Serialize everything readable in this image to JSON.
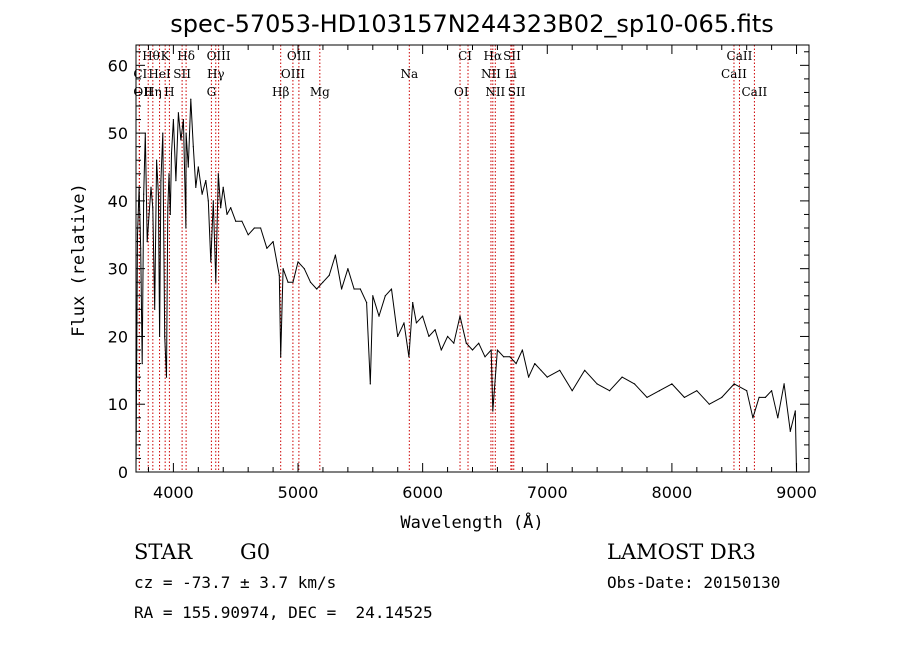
{
  "chart_data": {
    "type": "line",
    "title": "spec-57053-HD103157N244323B02_sp10-065.fits",
    "xlabel": "Wavelength (Å)",
    "ylabel": "Flux (relative)",
    "xlim": [
      3700,
      9100
    ],
    "ylim": [
      0,
      63
    ],
    "xticks": [
      4000,
      5000,
      6000,
      7000,
      8000,
      9000
    ],
    "yticks": [
      0,
      10,
      20,
      30,
      40,
      50,
      60
    ],
    "grid": false,
    "series": [
      {
        "name": "flux",
        "x": [
          3700,
          3712,
          3725,
          3738,
          3750,
          3762,
          3775,
          3790,
          3805,
          3820,
          3835,
          3850,
          3865,
          3880,
          3889,
          3900,
          3915,
          3930,
          3945,
          3955,
          3965,
          3975,
          3985,
          4000,
          4020,
          4040,
          4060,
          4080,
          4100,
          4102,
          4120,
          4140,
          4160,
          4180,
          4200,
          4230,
          4260,
          4280,
          4300,
          4320,
          4340,
          4360,
          4380,
          4400,
          4430,
          4460,
          4500,
          4550,
          4600,
          4650,
          4700,
          4750,
          4800,
          4850,
          4861,
          4880,
          4920,
          4960,
          5000,
          5050,
          5100,
          5150,
          5200,
          5250,
          5300,
          5350,
          5400,
          5450,
          5500,
          5550,
          5580,
          5600,
          5650,
          5700,
          5750,
          5800,
          5850,
          5890,
          5920,
          5950,
          6000,
          6050,
          6100,
          6150,
          6200,
          6250,
          6300,
          6350,
          6400,
          6450,
          6500,
          6550,
          6563,
          6600,
          6650,
          6700,
          6750,
          6800,
          6850,
          6900,
          6950,
          7000,
          7100,
          7200,
          7300,
          7400,
          7500,
          7600,
          7700,
          7800,
          7900,
          8000,
          8100,
          8200,
          8300,
          8400,
          8500,
          8600,
          8650,
          8700,
          8750,
          8800,
          8850,
          8900,
          8950,
          8990,
          9000
        ],
        "y": [
          0,
          35,
          42,
          33,
          16,
          41,
          50,
          34,
          38,
          42,
          39,
          24,
          46,
          41,
          20,
          43,
          50,
          20,
          14,
          39,
          44,
          38,
          47,
          52,
          43,
          53,
          49,
          52,
          36,
          50,
          45,
          55,
          48,
          42,
          45,
          41,
          43,
          40,
          31,
          40,
          28,
          44,
          39,
          42,
          38,
          39,
          37,
          37,
          35,
          36,
          36,
          33,
          34,
          29,
          17,
          30,
          28,
          28,
          31,
          30,
          28,
          27,
          28,
          29,
          32,
          27,
          30,
          27,
          27,
          25,
          13,
          26,
          23,
          26,
          27,
          20,
          22,
          17,
          25,
          22,
          23,
          20,
          21,
          18,
          20,
          19,
          23,
          19,
          18,
          19,
          17,
          18,
          9,
          18,
          17,
          17,
          16,
          18,
          14,
          16,
          15,
          14,
          15,
          12,
          15,
          13,
          12,
          14,
          13,
          11,
          12,
          13,
          11,
          12,
          10,
          11,
          13,
          12,
          8,
          11,
          11,
          12,
          8,
          13,
          6,
          9,
          0
        ]
      }
    ],
    "lines": [
      {
        "label": "Hθ",
        "x": 3798,
        "row": 0,
        "side": "r"
      },
      {
        "label": "K",
        "x": 3934,
        "row": 0,
        "side": "c"
      },
      {
        "label": "Hδ",
        "x": 4102,
        "row": 0,
        "side": "c"
      },
      {
        "label": "OIII",
        "x": 4363,
        "row": 0,
        "side": "c"
      },
      {
        "label": "OIII",
        "x": 5007,
        "row": 0,
        "side": "c"
      },
      {
        "label": "CI",
        "x": 6364,
        "row": 0,
        "side": "l"
      },
      {
        "label": "Hα",
        "x": 6563,
        "row": 0,
        "side": "c"
      },
      {
        "label": "SII",
        "x": 6717,
        "row": 0,
        "side": "c"
      },
      {
        "label": "CaII",
        "x": 8542,
        "row": 0,
        "side": "c"
      },
      {
        "label": "CI",
        "x": 3727,
        "row": 1,
        "side": "r"
      },
      {
        "label": "HeI",
        "x": 3889,
        "row": 1,
        "side": "c"
      },
      {
        "label": "SII",
        "x": 4070,
        "row": 1,
        "side": "c"
      },
      {
        "label": "Hγ",
        "x": 4340,
        "row": 1,
        "side": "c"
      },
      {
        "label": "OIII",
        "x": 4959,
        "row": 1,
        "side": "c"
      },
      {
        "label": "Na",
        "x": 5893,
        "row": 1,
        "side": "c"
      },
      {
        "label": "NII",
        "x": 6548,
        "row": 1,
        "side": "c"
      },
      {
        "label": "Li",
        "x": 6708,
        "row": 1,
        "side": "c"
      },
      {
        "label": "CaII",
        "x": 8498,
        "row": 1,
        "side": "c"
      },
      {
        "label": "OII",
        "x": 3727,
        "row": 2,
        "side": "r"
      },
      {
        "label": "Hη",
        "x": 3835,
        "row": 2,
        "side": "c"
      },
      {
        "label": "H",
        "x": 3968,
        "row": 2,
        "side": "c"
      },
      {
        "label": "G",
        "x": 4305,
        "row": 2,
        "side": "c"
      },
      {
        "label": "Hβ",
        "x": 4861,
        "row": 2,
        "side": "c"
      },
      {
        "label": "Mg",
        "x": 5175,
        "row": 2,
        "side": "c"
      },
      {
        "label": "OI",
        "x": 6300,
        "row": 2,
        "side": "r"
      },
      {
        "label": "NII",
        "x": 6583,
        "row": 2,
        "side": "c"
      },
      {
        "label": "SII",
        "x": 6731,
        "row": 2,
        "side": "r"
      },
      {
        "label": "CaII",
        "x": 8662,
        "row": 2,
        "side": "c"
      }
    ]
  },
  "info": {
    "object_class": "STAR",
    "subclass": "G0",
    "survey": "LAMOST DR3",
    "cz": "cz = -73.7 ± 3.7 km/s",
    "obs_date": "Obs-Date: 20150130",
    "coords": "RA = 155.90974, DEC =  24.14525"
  }
}
